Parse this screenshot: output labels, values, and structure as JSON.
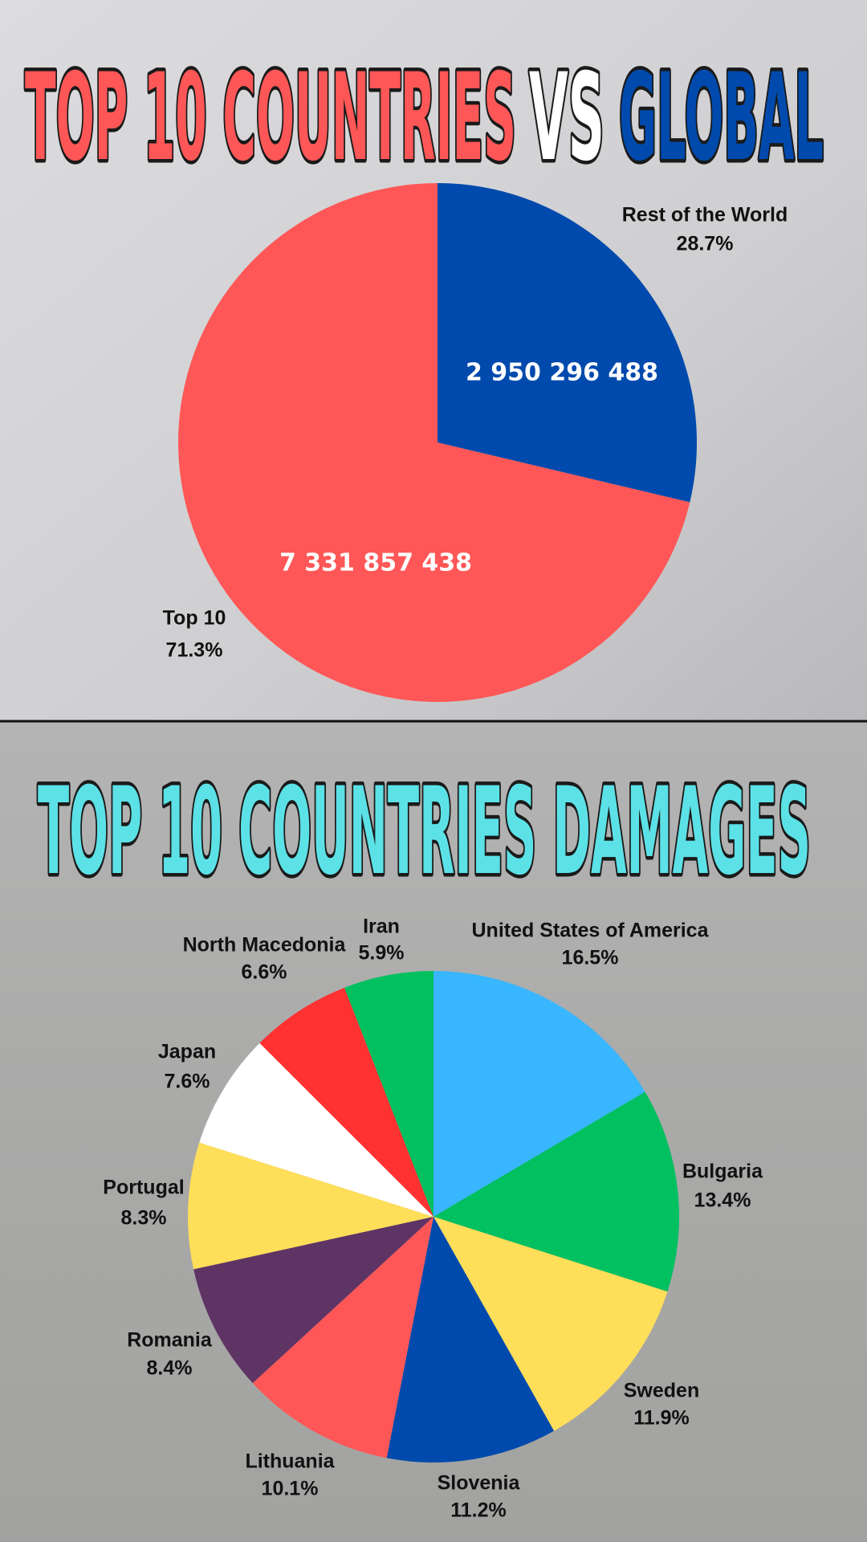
{
  "chart_data": [
    {
      "type": "pie",
      "title_parts": [
        "TOP 10 COUNTRIES",
        "VS",
        "GLOBAL"
      ],
      "title_colors": [
        "#ff5757",
        "#ffffff",
        "#004aad"
      ],
      "categories": [
        "Rest of the World",
        "Top 10"
      ],
      "values": [
        28.7,
        71.3
      ],
      "value_labels": [
        "28.7%",
        "71.3%"
      ],
      "amounts": [
        2950296488,
        7331857438
      ],
      "amount_labels": [
        "2 950 296 488",
        "7 331 857 438"
      ],
      "colors": [
        "#004aad",
        "#ff5757"
      ]
    },
    {
      "type": "pie",
      "title": "TOP 10 COUNTRIES DAMAGES",
      "title_color": "#5ce1e6",
      "categories": [
        "United States of America",
        "Bulgaria",
        "Sweden",
        "Slovenia",
        "Lithuania",
        "Romania",
        "Portugal",
        "Japan",
        "North Macedonia",
        "Iran"
      ],
      "values": [
        16.5,
        13.4,
        11.9,
        11.2,
        10.1,
        8.4,
        8.3,
        7.6,
        6.6,
        5.9
      ],
      "value_labels": [
        "16.5%",
        "13.4%",
        "11.9%",
        "11.2%",
        "10.1%",
        "8.4%",
        "8.3%",
        "7.6%",
        "6.6%",
        "5.9%"
      ],
      "colors": [
        "#38b6ff",
        "#00c060",
        "#ffde59",
        "#004aad",
        "#ff5757",
        "#5e3464",
        "#ffde59",
        "#ffffff",
        "#ff3131",
        "#00c060"
      ]
    }
  ]
}
